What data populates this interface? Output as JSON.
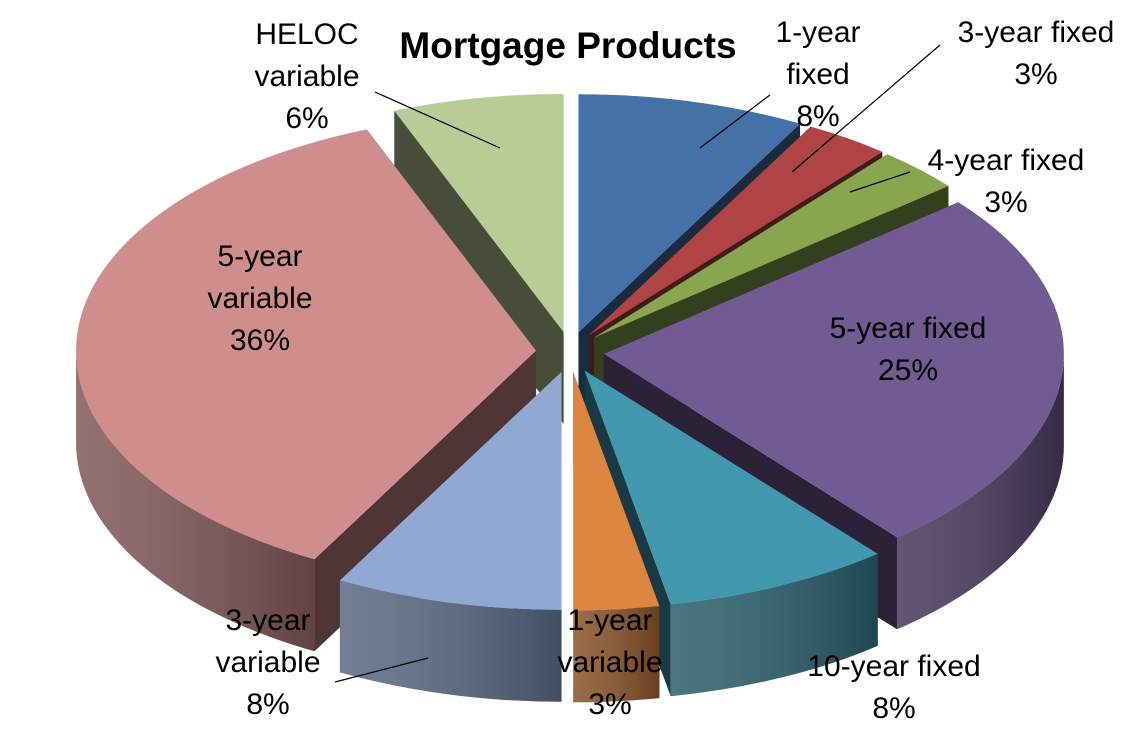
{
  "chart_data": {
    "type": "pie",
    "style": "3d-exploded",
    "title": "Mortgage Products",
    "slices": [
      {
        "name": "1-year fixed",
        "label_lines": [
          "1-year",
          "fixed",
          "8%"
        ],
        "value": 8,
        "color": "#4472a8"
      },
      {
        "name": "3-year fixed",
        "label_lines": [
          "3-year fixed",
          "3%"
        ],
        "value": 3,
        "color": "#b04444"
      },
      {
        "name": "4-year fixed",
        "label_lines": [
          "4-year fixed",
          "3%"
        ],
        "value": 3,
        "color": "#88a64e"
      },
      {
        "name": "5-year fixed",
        "label_lines": [
          "5-year fixed",
          "25%"
        ],
        "value": 25,
        "color": "#725a92"
      },
      {
        "name": "10-year fixed",
        "label_lines": [
          "10-year fixed",
          "8%"
        ],
        "value": 8,
        "color": "#4298ae"
      },
      {
        "name": "1-year variable",
        "label_lines": [
          "1-year",
          "variable",
          "3%"
        ],
        "value": 3,
        "color": "#dd8640"
      },
      {
        "name": "3-year variable",
        "label_lines": [
          "3-year",
          "variable",
          "8%"
        ],
        "value": 8,
        "color": "#90a8d2"
      },
      {
        "name": "5-year variable",
        "label_lines": [
          "5-year",
          "variable",
          "36%"
        ],
        "value": 36,
        "color": "#cf8e8c"
      },
      {
        "name": "HELOC variable",
        "label_lines": [
          "HELOC",
          "variable",
          "6%"
        ],
        "value": 6,
        "color": "#b8cd96"
      }
    ],
    "legend": "none"
  }
}
